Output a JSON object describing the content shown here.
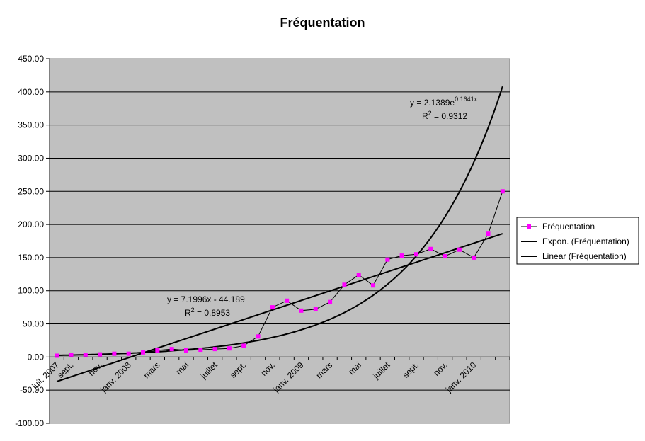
{
  "chart_data": {
    "type": "line",
    "title": "Fréquentation",
    "xlabel": "",
    "ylabel": "",
    "ylim": [
      -100,
      450
    ],
    "y_ticks": [
      "-100.00",
      "-50.00",
      "0.00",
      "50.00",
      "100.00",
      "150.00",
      "200.00",
      "250.00",
      "300.00",
      "350.00",
      "400.00",
      "450.00"
    ],
    "x_ticks": [
      {
        "i": 0,
        "label": "juil. 2007"
      },
      {
        "i": 1,
        "label": "sept."
      },
      {
        "i": 3,
        "label": "nov."
      },
      {
        "i": 5,
        "label": "janv. 2008"
      },
      {
        "i": 7,
        "label": "mars"
      },
      {
        "i": 9,
        "label": "mai"
      },
      {
        "i": 11,
        "label": "juillet"
      },
      {
        "i": 13,
        "label": "sept."
      },
      {
        "i": 15,
        "label": "nov."
      },
      {
        "i": 17,
        "label": "janv. 2009"
      },
      {
        "i": 19,
        "label": "mars"
      },
      {
        "i": 21,
        "label": "mai"
      },
      {
        "i": 23,
        "label": "juillet"
      },
      {
        "i": 25,
        "label": "sept."
      },
      {
        "i": 27,
        "label": "nov."
      },
      {
        "i": 29,
        "label": "janv. 2010"
      }
    ],
    "grid": true,
    "legend_position": "right",
    "series": [
      {
        "name": "Fréquentation",
        "color": "#ff00ff",
        "values": [
          2,
          3,
          3,
          4,
          5,
          5,
          7,
          10,
          12,
          10,
          11,
          12,
          13,
          17,
          31,
          75,
          85,
          70,
          72,
          83,
          109,
          124,
          108,
          147,
          153,
          155,
          163,
          152,
          162,
          150,
          186,
          250
        ]
      }
    ],
    "trendlines": [
      {
        "name": "Expon. (Fréquentation)",
        "type": "exponential",
        "a": 2.1389,
        "b": 0.1641,
        "equation": "y = 2.1389e",
        "exponent": "0.1641x",
        "r2_prefix": "R",
        "r2_sup": "2",
        "r2_value": " = 0.9312"
      },
      {
        "name": "Linear (Fréquentation)",
        "type": "linear",
        "slope": 7.1996,
        "intercept": -44.189,
        "equation": "y = 7.1996x - 44.189",
        "r2_prefix": "R",
        "r2_sup": "2",
        "r2_value": " = 0.8953"
      }
    ],
    "colors": {
      "plot_bg": "#c0c0c0",
      "gridline": "#000000",
      "trend": "#000000",
      "marker": "#ff00ff",
      "series_line": "#000000"
    }
  }
}
